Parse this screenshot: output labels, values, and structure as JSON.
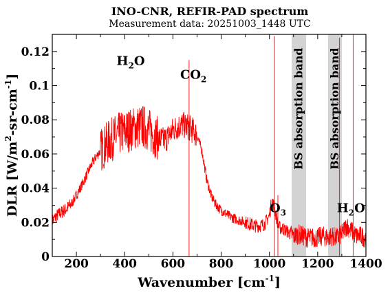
{
  "chart_data": {
    "type": "line",
    "title": "INO-CNR, REFIR-PAD spectrum",
    "subtitle": "Measurement data: 20251003_1448 UTC",
    "xlabel": "Wavenumber [cm-1]",
    "xlabel_parts": {
      "main": "Wavenumber [cm",
      "sup": "-1",
      "end": "]"
    },
    "ylabel": "DLR [W/m2-sr-cm-1]",
    "ylabel_parts": {
      "a": "DLR [W/m",
      "sup1": "2",
      "b": "-sr-cm",
      "sup2": "-1",
      "c": "]"
    },
    "xlim": [
      100,
      1400
    ],
    "ylim": [
      0,
      0.13
    ],
    "x_ticks": [
      200,
      400,
      600,
      800,
      1000,
      1200,
      1400
    ],
    "x_tick_labels": [
      "200",
      "400",
      "600",
      "800",
      "1000",
      "1200",
      "1400"
    ],
    "y_ticks": [
      0,
      0.02,
      0.04,
      0.06,
      0.08,
      0.1,
      0.12
    ],
    "y_tick_labels": [
      "0",
      "0.02",
      "0.04",
      "0.06",
      "0.08",
      "0.1",
      "0.12"
    ],
    "grid": false,
    "legend": "none",
    "series_color": "#ff0000",
    "band_color": "#d3d3d3",
    "series": [
      {
        "x": [
          100,
          120,
          140,
          160,
          180,
          200,
          220,
          240,
          260,
          280,
          300,
          320,
          340,
          360,
          380,
          400,
          420,
          440,
          460,
          480,
          500,
          520,
          540,
          560,
          580,
          600,
          620,
          640,
          660,
          680,
          700,
          720,
          740,
          760,
          780,
          800,
          820,
          840,
          860,
          880,
          900,
          920,
          940,
          960,
          980,
          1000,
          1010,
          1020,
          1030,
          1040,
          1060,
          1080,
          1100,
          1120,
          1140,
          1160,
          1180,
          1200,
          1220,
          1240,
          1260,
          1280,
          1300,
          1320,
          1340,
          1360,
          1380,
          1400
        ],
        "y": [
          0.021,
          0.024,
          0.026,
          0.028,
          0.031,
          0.036,
          0.041,
          0.047,
          0.053,
          0.058,
          0.062,
          0.065,
          0.068,
          0.07,
          0.072,
          0.073,
          0.074,
          0.075,
          0.076,
          0.076,
          0.074,
          0.071,
          0.069,
          0.068,
          0.07,
          0.074,
          0.076,
          0.077,
          0.076,
          0.074,
          0.071,
          0.062,
          0.045,
          0.035,
          0.03,
          0.027,
          0.025,
          0.023,
          0.022,
          0.021,
          0.02,
          0.019,
          0.018,
          0.018,
          0.019,
          0.024,
          0.033,
          0.029,
          0.022,
          0.017,
          0.016,
          0.014,
          0.012,
          0.013,
          0.012,
          0.011,
          0.011,
          0.011,
          0.012,
          0.011,
          0.012,
          0.011,
          0.013,
          0.018,
          0.015,
          0.012,
          0.012,
          0.011
        ]
      }
    ],
    "spikes": [
      {
        "x": 667,
        "y": 0.115
      },
      {
        "x": 1021,
        "y": 0.129
      },
      {
        "x": 1035,
        "y": 0.036
      },
      {
        "x": 1290,
        "y": 0.128
      },
      {
        "x": 1347,
        "y": 0.13
      }
    ],
    "bands": [
      {
        "from": 1092,
        "to": 1152,
        "label": "BS absorption band"
      },
      {
        "from": 1243,
        "to": 1300,
        "label": "BS absorption band"
      }
    ],
    "annotations": [
      {
        "main": "H",
        "sub": "2",
        "tail": "O",
        "x": 425,
        "y": 0.112
      },
      {
        "main": "CO",
        "sub": "2",
        "tail": "",
        "x": 685,
        "y": 0.104
      },
      {
        "main": "O",
        "sub": "3",
        "tail": "",
        "x": 1035,
        "y": 0.026
      },
      {
        "main": "H",
        "sub": "2",
        "tail": "O",
        "x": 1338,
        "y": 0.026
      }
    ]
  }
}
